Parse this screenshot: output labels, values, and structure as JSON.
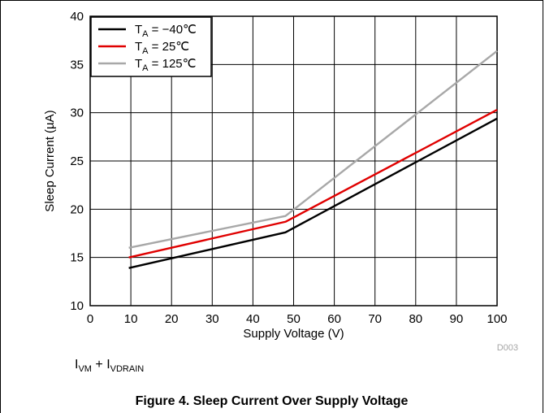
{
  "chart_data": {
    "type": "line",
    "xlabel": "Supply Voltage (V)",
    "ylabel": "Sleep Current (µA)",
    "xlim": [
      0,
      100
    ],
    "ylim": [
      10,
      40
    ],
    "xticks": [
      0,
      10,
      20,
      30,
      40,
      50,
      60,
      70,
      80,
      90,
      100
    ],
    "yticks": [
      10,
      15,
      20,
      25,
      30,
      35,
      40
    ],
    "grid": true,
    "legend_position": "top-left",
    "series": [
      {
        "name": "T_A = −40℃",
        "label_main": "T",
        "label_sub": "A",
        "label_rest": " = −40℃",
        "color": "#000000",
        "x": [
          9.5,
          48,
          100
        ],
        "y": [
          13.9,
          17.6,
          29.4
        ]
      },
      {
        "name": "T_A = 25℃",
        "label_main": "T",
        "label_sub": "A",
        "label_rest": " = 25℃",
        "color": "#e00000",
        "x": [
          9.5,
          48,
          100
        ],
        "y": [
          15.0,
          18.7,
          30.3
        ]
      },
      {
        "name": "T_A = 125℃",
        "label_main": "T",
        "label_sub": "A",
        "label_rest": " = 125℃",
        "color": "#a8a8a8",
        "x": [
          9.5,
          48,
          100
        ],
        "y": [
          16.0,
          19.3,
          36.4
        ]
      }
    ],
    "figure_code": "D003"
  },
  "note": {
    "i1_main": "I",
    "i1_sub": "VM",
    "plus": " + ",
    "i2_main": "I",
    "i2_sub": "VDRAIN"
  },
  "caption": "Figure 4. Sleep Current Over Supply Voltage"
}
